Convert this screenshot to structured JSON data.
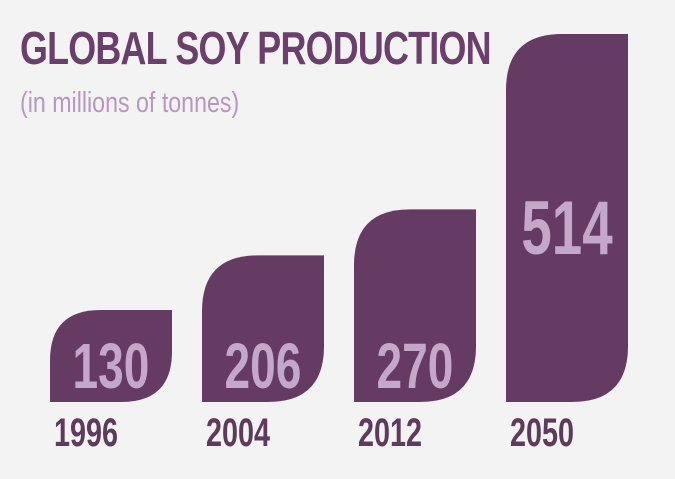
{
  "title": "GLOBAL SOY PRODUCTION",
  "subtitle": "(in millions of tonnes)",
  "colors": {
    "bar": "#653b63",
    "value_label": "#c4a8c9",
    "year_label": "#5e3a5c",
    "title": "#6b3f6b",
    "subtitle": "#b896c2",
    "background": "#f4f3f3"
  },
  "chart_data": {
    "type": "bar",
    "title": "GLOBAL SOY PRODUCTION",
    "subtitle": "(in millions of tonnes)",
    "categories": [
      "1996",
      "2004",
      "2012",
      "2050"
    ],
    "values": [
      130,
      206,
      270,
      514
    ],
    "data_labels": [
      "130",
      "206",
      "270",
      "514"
    ],
    "xlabel": "",
    "ylabel": "",
    "grid": false
  }
}
